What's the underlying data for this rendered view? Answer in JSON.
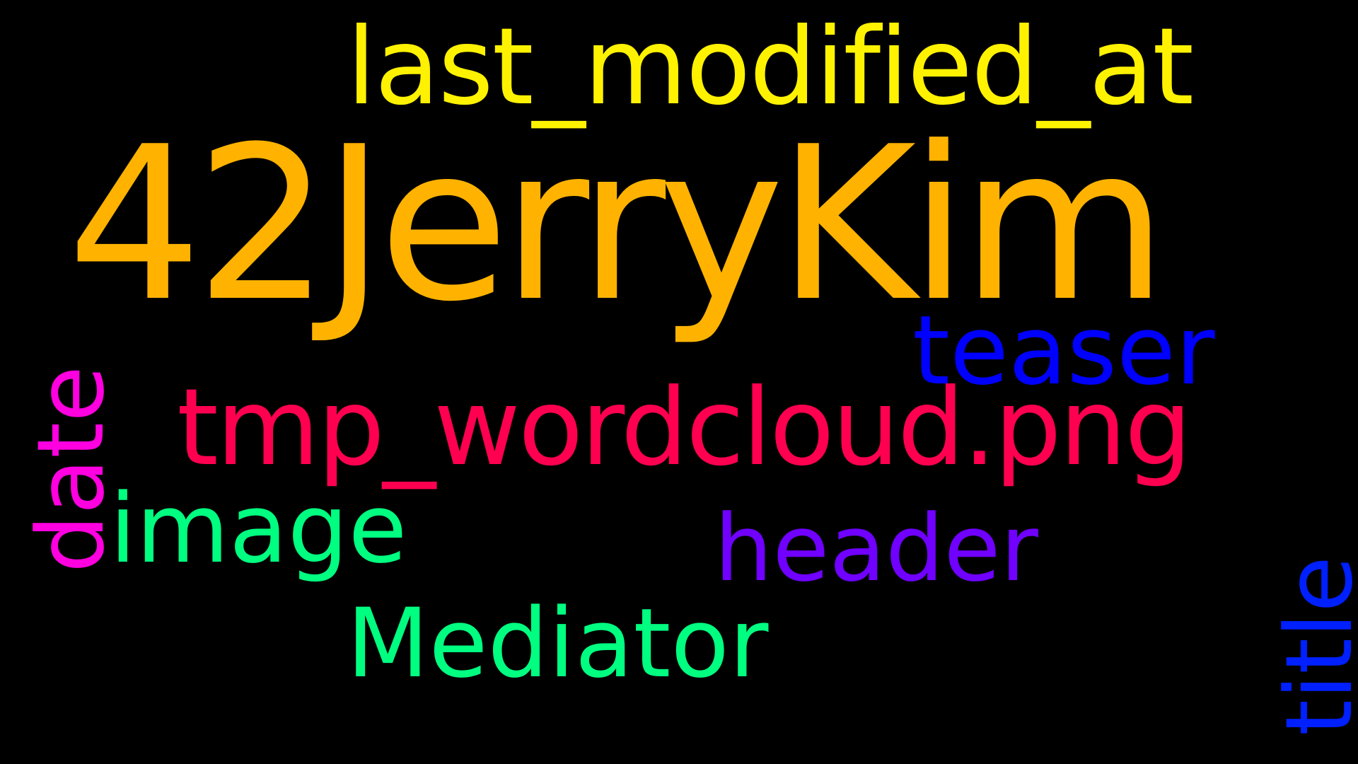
{
  "background_color": "#000000",
  "words": [
    {
      "id": "42JerryKim",
      "text": "42JerryKim",
      "color": "#FFB300",
      "orientation": "horizontal"
    },
    {
      "id": "last_modified_at",
      "text": "last_modified_at",
      "color": "#FFF200",
      "orientation": "horizontal"
    },
    {
      "id": "teaser",
      "text": "teaser",
      "color": "#0000FF",
      "orientation": "horizontal"
    },
    {
      "id": "tmp_wordcloud",
      "text": "tmp_wordcloud.png",
      "color": "#FF0050",
      "orientation": "horizontal"
    },
    {
      "id": "image",
      "text": "image",
      "color": "#00FF80",
      "orientation": "horizontal"
    },
    {
      "id": "header",
      "text": "header",
      "color": "#7000FF",
      "orientation": "horizontal"
    },
    {
      "id": "Mediator",
      "text": "Mediator",
      "color": "#00FF80",
      "orientation": "horizontal"
    },
    {
      "id": "date",
      "text": "date",
      "color": "#FF00E0",
      "orientation": "vertical"
    },
    {
      "id": "title",
      "text": "title",
      "color": "#0020FF",
      "orientation": "vertical"
    }
  ]
}
